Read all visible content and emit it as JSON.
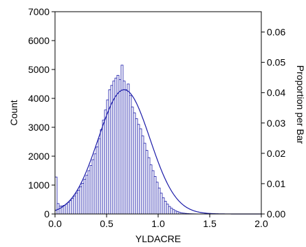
{
  "chart_data": {
    "type": "bar",
    "subtype": "histogram with fitted normal curve",
    "title": "",
    "xlabel": "YLDACRE",
    "ylabel": "Count",
    "ylabel_right": "Proportion per Bar",
    "xlim": [
      0.0,
      2.0
    ],
    "ylim": [
      0,
      7000
    ],
    "ylim_right": [
      0.0,
      0.0667
    ],
    "x_ticks": [
      "0.0",
      "0.5",
      "1.0",
      "1.5",
      "2.0"
    ],
    "y_ticks": [
      "0",
      "1000",
      "2000",
      "3000",
      "4000",
      "5000",
      "6000",
      "7000"
    ],
    "y_ticks_right": [
      "0.00",
      "0.01",
      "0.02",
      "0.03",
      "0.04",
      "0.05",
      "0.06"
    ],
    "grid": false,
    "legend": "none",
    "bin_width": 0.02,
    "bin_start": 0.0,
    "counts": [
      1280,
      360,
      270,
      280,
      300,
      340,
      400,
      460,
      540,
      620,
      720,
      820,
      940,
      1060,
      1200,
      1340,
      1500,
      1680,
      1880,
      2080,
      2320,
      2600,
      2920,
      3250,
      3600,
      3950,
      4300,
      4450,
      4600,
      4700,
      4800,
      4650,
      5150,
      4600,
      4300,
      4500,
      4100,
      3700,
      3500,
      3300,
      3100,
      2950,
      2700,
      2450,
      2200,
      1950,
      1700,
      1500,
      1300,
      1100,
      900,
      720,
      560,
      440,
      340,
      260,
      200,
      150,
      110,
      80,
      55,
      40,
      28,
      20,
      14,
      10,
      7,
      5,
      3,
      2
    ],
    "fit_curve": {
      "type": "normal",
      "mean": 0.67,
      "sd": 0.25,
      "peak_count": 4300
    },
    "colors": {
      "bar_stroke": "#1a1aa8",
      "curve": "#1a1aa8",
      "axis": "#000000"
    }
  }
}
